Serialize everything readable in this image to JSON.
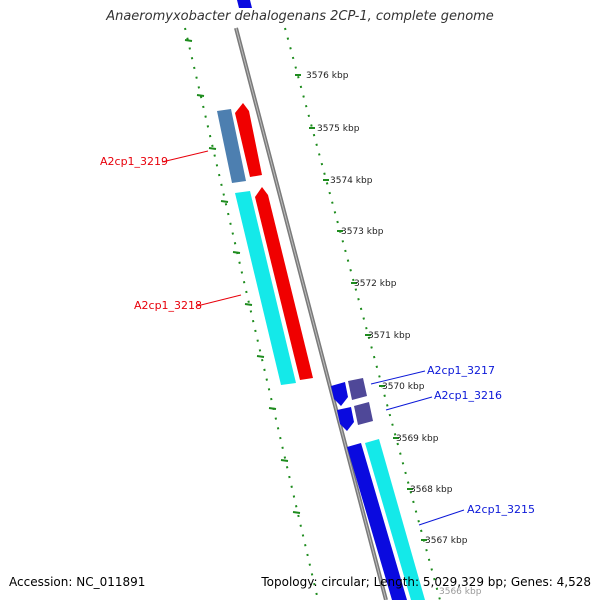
{
  "title": "Anaeromyxobacter dehalogenans 2CP-1, complete genome",
  "accession": "Accession: NC_011891",
  "summary": "Topology: circular; Length: 5,029,329 bp; Genes: 4,528",
  "ticks": [
    "3576 kbp",
    "3575 kbp",
    "3574 kbp",
    "3573 kbp",
    "3572 kbp",
    "3571 kbp",
    "3570 kbp",
    "3569 kbp",
    "3568 kbp",
    "3567 kbp",
    "3566 kbp"
  ],
  "gene_labels": {
    "g3219": "A2cp1_3219",
    "g3218": "A2cp1_3218",
    "g3217": "A2cp1_3217",
    "g3216": "A2cp1_3216",
    "g3215": "A2cp1_3215"
  },
  "colors": {
    "reverse_label": "#e8000b",
    "forward_label": "#0b18d8",
    "red_feature": "#f00000",
    "cyan_feature": "#14e9e9",
    "blue_feature": "#0a0adf",
    "steel_blue_feature": "#4d7fb0",
    "slate_feature": "#4f4898",
    "tick_green": "#1e8c1e",
    "backbone_gray": "#7a7a7a"
  }
}
